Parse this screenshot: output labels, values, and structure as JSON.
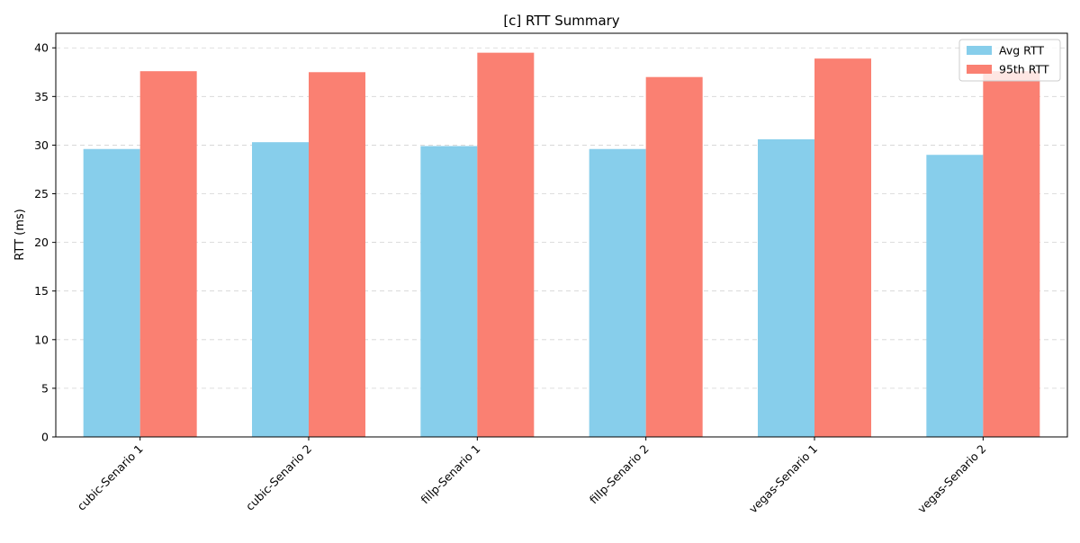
{
  "chart_data": {
    "type": "bar",
    "title": "[c] RTT Summary",
    "xlabel": "",
    "ylabel": "RTT (ms)",
    "categories": [
      "cubic-Senario 1",
      "cubic-Senario 2",
      "fillp-Senario 1",
      "fillp-Senario 2",
      "vegas-Senario 1",
      "vegas-Senario 2"
    ],
    "series": [
      {
        "name": "Avg RTT",
        "color": "#87CEEB",
        "values": [
          29.6,
          30.3,
          29.9,
          29.6,
          30.6,
          29.0
        ]
      },
      {
        "name": "95th RTT",
        "color": "#FA8072",
        "values": [
          37.6,
          37.5,
          39.5,
          37.0,
          38.9,
          37.6
        ]
      }
    ],
    "ylim": [
      0,
      41.5
    ],
    "yticks": [
      0,
      5,
      10,
      15,
      20,
      25,
      30,
      35,
      40
    ],
    "grid": "y-dashed",
    "legend_position": "top-right",
    "xtick_rotation": 45
  }
}
